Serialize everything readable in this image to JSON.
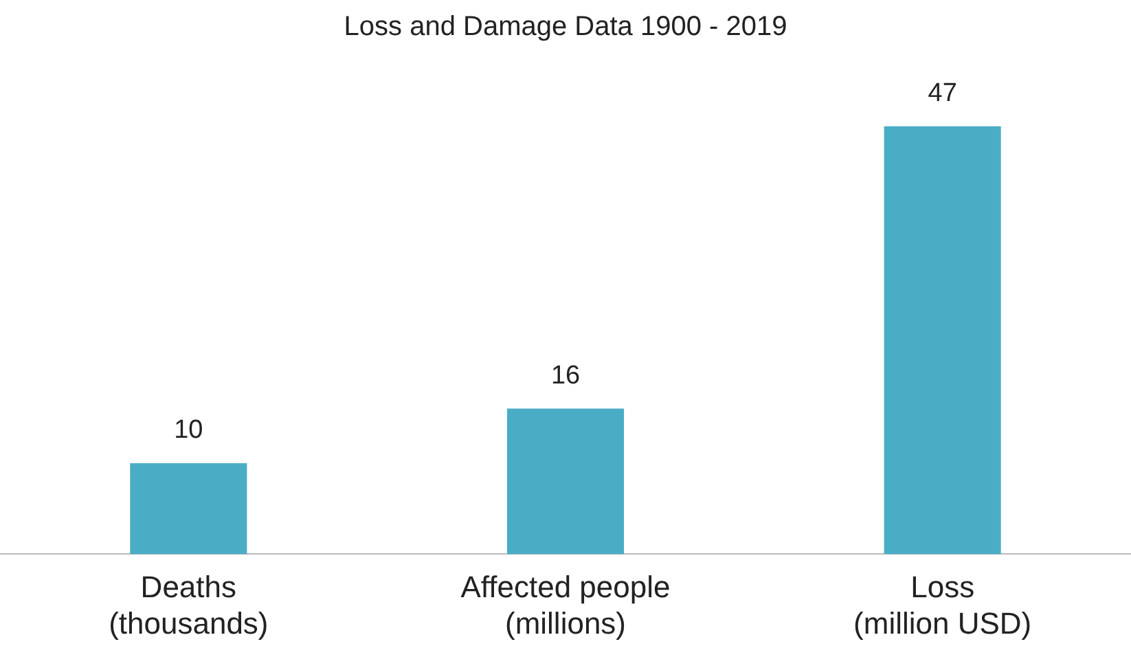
{
  "chart_data": {
    "type": "bar",
    "title": "Loss and Damage Data 1900 - 2019",
    "categories": [
      "Deaths (thousands)",
      "Affected people (millions)",
      "Loss (million USD)"
    ],
    "values": [
      10,
      16,
      47
    ],
    "color": "#4bacc6",
    "data_labels": true,
    "grid": false,
    "legend": false
  }
}
